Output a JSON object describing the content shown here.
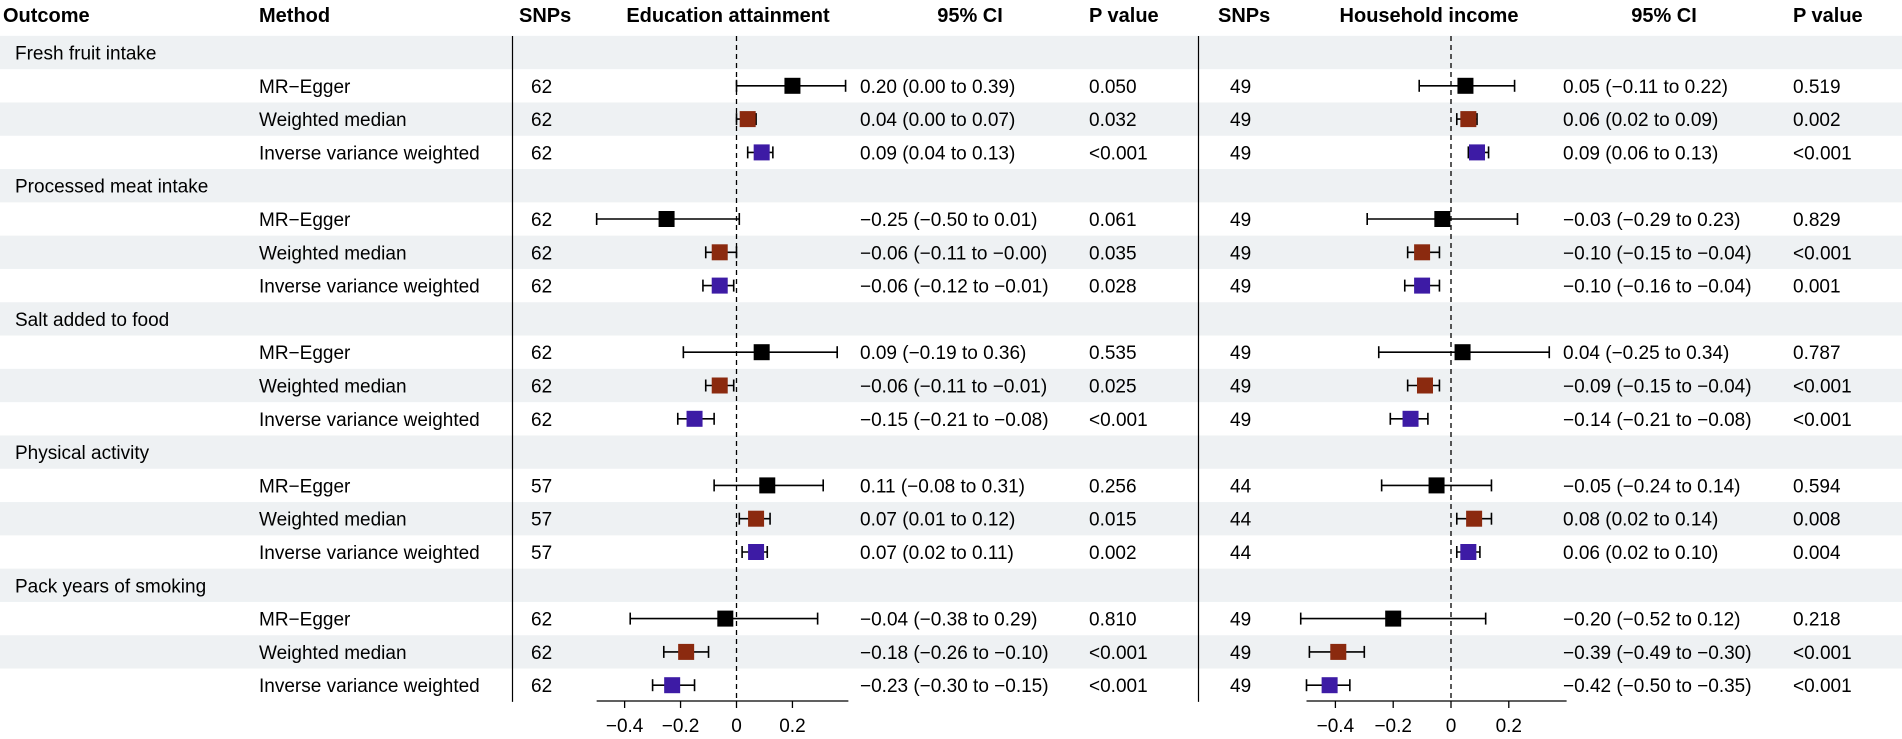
{
  "colors": {
    "band": "#eef1f3",
    "mr_egger": "#000000",
    "weighted_median": "#8b2a0f",
    "ivw": "#3d1ba5",
    "line": "#000000"
  },
  "headers": {
    "outcome": "Outcome",
    "method": "Method",
    "snps1": "SNPs",
    "exposure1": "Education attainment",
    "ci1": "95% CI",
    "p1": "P value",
    "snps2": "SNPs",
    "exposure2": "Household income",
    "ci2": "95% CI",
    "p2": "P value"
  },
  "chart_data": {
    "type": "forest",
    "xlim": [
      -0.5,
      0.4
    ],
    "ticks": [
      -0.4,
      -0.2,
      0,
      0.2
    ],
    "tick_labels": [
      "−0.4",
      "−0.2",
      "0",
      "0.2"
    ],
    "methods": [
      "MR−Egger",
      "Weighted median",
      "Inverse variance weighted"
    ],
    "outcomes": [
      {
        "name": "Fresh fruit intake",
        "rows": [
          {
            "method": "MR−Egger",
            "edu": {
              "snps": "62",
              "est": 0.2,
              "lo": 0.0,
              "hi": 0.39,
              "ci": "0.20 (0.00 to 0.39)",
              "p": "0.050"
            },
            "inc": {
              "snps": "49",
              "est": 0.05,
              "lo": -0.11,
              "hi": 0.22,
              "ci": "0.05 (−0.11 to 0.22)",
              "p": "0.519"
            }
          },
          {
            "method": "Weighted median",
            "edu": {
              "snps": "62",
              "est": 0.04,
              "lo": 0.0,
              "hi": 0.07,
              "ci": "0.04 (0.00 to 0.07)",
              "p": "0.032"
            },
            "inc": {
              "snps": "49",
              "est": 0.06,
              "lo": 0.02,
              "hi": 0.09,
              "ci": "0.06 (0.02 to 0.09)",
              "p": "0.002"
            }
          },
          {
            "method": "Inverse variance weighted",
            "edu": {
              "snps": "62",
              "est": 0.09,
              "lo": 0.04,
              "hi": 0.13,
              "ci": "0.09 (0.04 to 0.13)",
              "p": "<0.001"
            },
            "inc": {
              "snps": "49",
              "est": 0.09,
              "lo": 0.06,
              "hi": 0.13,
              "ci": "0.09 (0.06 to 0.13)",
              "p": "<0.001"
            }
          }
        ]
      },
      {
        "name": "Processed meat intake",
        "rows": [
          {
            "method": "MR−Egger",
            "edu": {
              "snps": "62",
              "est": -0.25,
              "lo": -0.5,
              "hi": 0.01,
              "ci": "−0.25 (−0.50 to 0.01)",
              "p": "0.061"
            },
            "inc": {
              "snps": "49",
              "est": -0.03,
              "lo": -0.29,
              "hi": 0.23,
              "ci": "−0.03 (−0.29 to 0.23)",
              "p": "0.829"
            }
          },
          {
            "method": "Weighted median",
            "edu": {
              "snps": "62",
              "est": -0.06,
              "lo": -0.11,
              "hi": -0.0,
              "ci": "−0.06 (−0.11 to −0.00)",
              "p": "0.035"
            },
            "inc": {
              "snps": "49",
              "est": -0.1,
              "lo": -0.15,
              "hi": -0.04,
              "ci": "−0.10 (−0.15 to −0.04)",
              "p": "<0.001"
            }
          },
          {
            "method": "Inverse variance weighted",
            "edu": {
              "snps": "62",
              "est": -0.06,
              "lo": -0.12,
              "hi": -0.01,
              "ci": "−0.06 (−0.12 to −0.01)",
              "p": "0.028"
            },
            "inc": {
              "snps": "49",
              "est": -0.1,
              "lo": -0.16,
              "hi": -0.04,
              "ci": "−0.10 (−0.16 to −0.04)",
              "p": "0.001"
            }
          }
        ]
      },
      {
        "name": "Salt added to food",
        "rows": [
          {
            "method": "MR−Egger",
            "edu": {
              "snps": "62",
              "est": 0.09,
              "lo": -0.19,
              "hi": 0.36,
              "ci": "0.09 (−0.19 to 0.36)",
              "p": "0.535"
            },
            "inc": {
              "snps": "49",
              "est": 0.04,
              "lo": -0.25,
              "hi": 0.34,
              "ci": "0.04 (−0.25 to 0.34)",
              "p": "0.787"
            }
          },
          {
            "method": "Weighted median",
            "edu": {
              "snps": "62",
              "est": -0.06,
              "lo": -0.11,
              "hi": -0.01,
              "ci": "−0.06 (−0.11 to −0.01)",
              "p": "0.025"
            },
            "inc": {
              "snps": "49",
              "est": -0.09,
              "lo": -0.15,
              "hi": -0.04,
              "ci": "−0.09 (−0.15 to −0.04)",
              "p": "<0.001"
            }
          },
          {
            "method": "Inverse variance weighted",
            "edu": {
              "snps": "62",
              "est": -0.15,
              "lo": -0.21,
              "hi": -0.08,
              "ci": "−0.15 (−0.21 to −0.08)",
              "p": "<0.001"
            },
            "inc": {
              "snps": "49",
              "est": -0.14,
              "lo": -0.21,
              "hi": -0.08,
              "ci": "−0.14 (−0.21 to −0.08)",
              "p": "<0.001"
            }
          }
        ]
      },
      {
        "name": "Physical activity",
        "rows": [
          {
            "method": "MR−Egger",
            "edu": {
              "snps": "57",
              "est": 0.11,
              "lo": -0.08,
              "hi": 0.31,
              "ci": "0.11 (−0.08 to 0.31)",
              "p": "0.256"
            },
            "inc": {
              "snps": "44",
              "est": -0.05,
              "lo": -0.24,
              "hi": 0.14,
              "ci": "−0.05 (−0.24 to 0.14)",
              "p": "0.594"
            }
          },
          {
            "method": "Weighted median",
            "edu": {
              "snps": "57",
              "est": 0.07,
              "lo": 0.01,
              "hi": 0.12,
              "ci": "0.07 (0.01 to 0.12)",
              "p": "0.015"
            },
            "inc": {
              "snps": "44",
              "est": 0.08,
              "lo": 0.02,
              "hi": 0.14,
              "ci": "0.08 (0.02 to 0.14)",
              "p": "0.008"
            }
          },
          {
            "method": "Inverse variance weighted",
            "edu": {
              "snps": "57",
              "est": 0.07,
              "lo": 0.02,
              "hi": 0.11,
              "ci": "0.07 (0.02 to 0.11)",
              "p": "0.002"
            },
            "inc": {
              "snps": "44",
              "est": 0.06,
              "lo": 0.02,
              "hi": 0.1,
              "ci": "0.06 (0.02 to 0.10)",
              "p": "0.004"
            }
          }
        ]
      },
      {
        "name": "Pack years of smoking",
        "rows": [
          {
            "method": "MR−Egger",
            "edu": {
              "snps": "62",
              "est": -0.04,
              "lo": -0.38,
              "hi": 0.29,
              "ci": "−0.04 (−0.38 to 0.29)",
              "p": "0.810"
            },
            "inc": {
              "snps": "49",
              "est": -0.2,
              "lo": -0.52,
              "hi": 0.12,
              "ci": "−0.20 (−0.52 to 0.12)",
              "p": "0.218"
            }
          },
          {
            "method": "Weighted median",
            "edu": {
              "snps": "62",
              "est": -0.18,
              "lo": -0.26,
              "hi": -0.1,
              "ci": "−0.18 (−0.26 to −0.10)",
              "p": "<0.001"
            },
            "inc": {
              "snps": "49",
              "est": -0.39,
              "lo": -0.49,
              "hi": -0.3,
              "ci": "−0.39 (−0.49 to −0.30)",
              "p": "<0.001"
            }
          },
          {
            "method": "Inverse variance weighted",
            "edu": {
              "snps": "62",
              "est": -0.23,
              "lo": -0.3,
              "hi": -0.15,
              "ci": "−0.23 (−0.30 to −0.15)",
              "p": "<0.001"
            },
            "inc": {
              "snps": "49",
              "est": -0.42,
              "lo": -0.5,
              "hi": -0.35,
              "ci": "−0.42 (−0.50 to −0.35)",
              "p": "<0.001"
            }
          }
        ]
      }
    ]
  }
}
